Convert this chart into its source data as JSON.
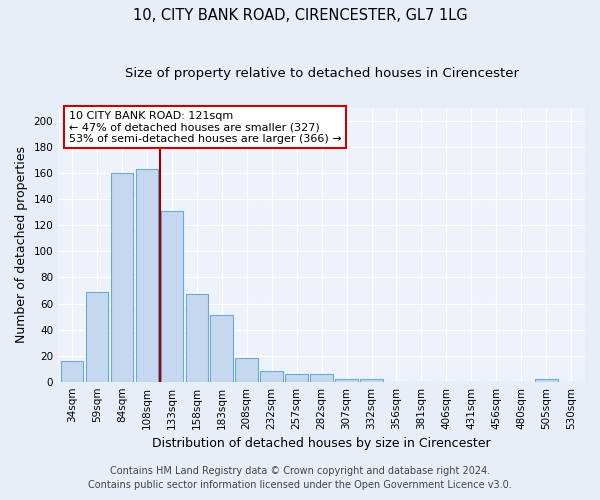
{
  "title": "10, CITY BANK ROAD, CIRENCESTER, GL7 1LG",
  "subtitle": "Size of property relative to detached houses in Cirencester",
  "xlabel": "Distribution of detached houses by size in Cirencester",
  "ylabel": "Number of detached properties",
  "bins": [
    "34sqm",
    "59sqm",
    "84sqm",
    "108sqm",
    "133sqm",
    "158sqm",
    "183sqm",
    "208sqm",
    "232sqm",
    "257sqm",
    "282sqm",
    "307sqm",
    "332sqm",
    "356sqm",
    "381sqm",
    "406sqm",
    "431sqm",
    "456sqm",
    "480sqm",
    "505sqm",
    "530sqm"
  ],
  "bar_values": [
    16,
    69,
    160,
    163,
    131,
    67,
    51,
    18,
    8,
    6,
    6,
    2,
    2,
    0,
    0,
    0,
    0,
    0,
    0,
    2,
    0
  ],
  "bar_color": "#c5d8f0",
  "bar_edge_color": "#6aaad4",
  "vline_color": "#9b0000",
  "annotation_text": "10 CITY BANK ROAD: 121sqm\n← 47% of detached houses are smaller (327)\n53% of semi-detached houses are larger (366) →",
  "annotation_box_color": "#ffffff",
  "annotation_box_edge": "#cc0000",
  "ylim": [
    0,
    210
  ],
  "yticks": [
    0,
    20,
    40,
    60,
    80,
    100,
    120,
    140,
    160,
    180,
    200
  ],
  "footer1": "Contains HM Land Registry data © Crown copyright and database right 2024.",
  "footer2": "Contains public sector information licensed under the Open Government Licence v3.0.",
  "bg_color": "#e8eef8",
  "plot_bg_color": "#eef2fa",
  "title_fontsize": 10.5,
  "subtitle_fontsize": 9.5,
  "axis_label_fontsize": 9,
  "tick_fontsize": 7.5,
  "footer_fontsize": 7,
  "annotation_fontsize": 8
}
